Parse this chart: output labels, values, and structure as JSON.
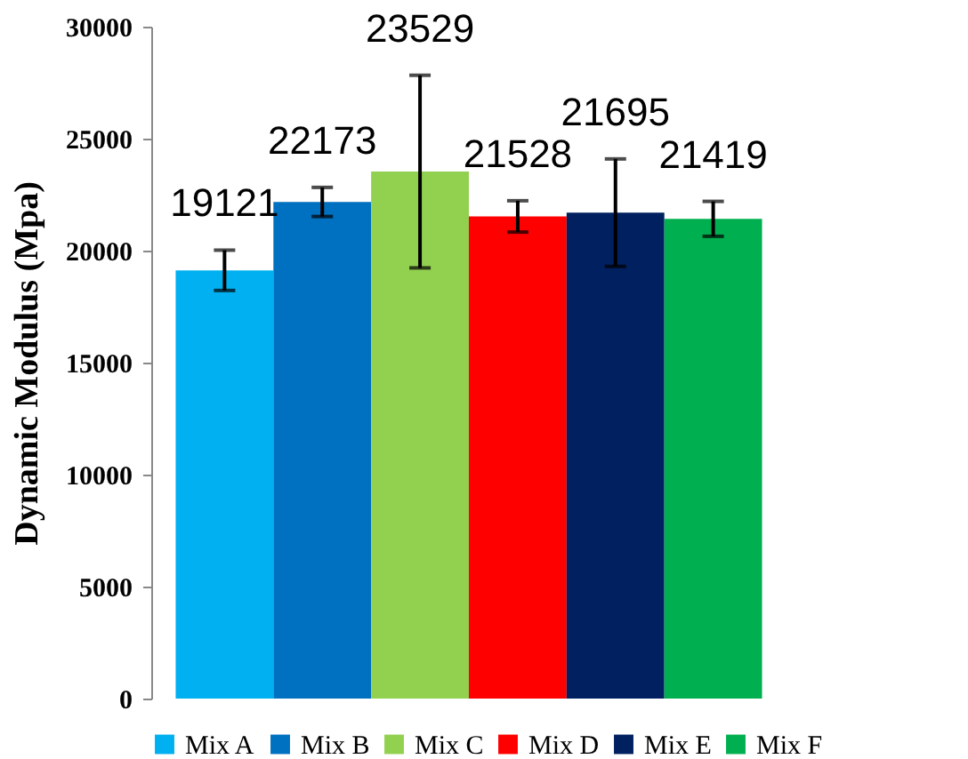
{
  "chart_data": {
    "type": "bar",
    "ylabel": "Dynamic Modulus (Mpa)",
    "categories": [
      null
    ],
    "series": [
      {
        "name": "Mix A",
        "color": "#00b0f0",
        "values": [
          19121
        ],
        "errors": [
          900
        ]
      },
      {
        "name": "Mix B",
        "color": "#0070c0",
        "values": [
          22173
        ],
        "errors": [
          650
        ]
      },
      {
        "name": "Mix C",
        "color": "#92d050",
        "values": [
          23529
        ],
        "errors": [
          4300
        ]
      },
      {
        "name": "Mix D",
        "color": "#ff0000",
        "values": [
          21528
        ],
        "errors": [
          700
        ]
      },
      {
        "name": "Mix E",
        "color": "#002060",
        "values": [
          21695
        ],
        "errors": [
          2400
        ]
      },
      {
        "name": "Mix F",
        "color": "#00b050",
        "values": [
          21419
        ],
        "errors": [
          780
        ]
      }
    ],
    "ylim": [
      0,
      30000
    ],
    "yticks": [
      0,
      5000,
      10000,
      15000,
      20000,
      25000,
      30000
    ],
    "data_labels": true,
    "legend": "bottom",
    "grid": false,
    "tick_labels": "y"
  }
}
